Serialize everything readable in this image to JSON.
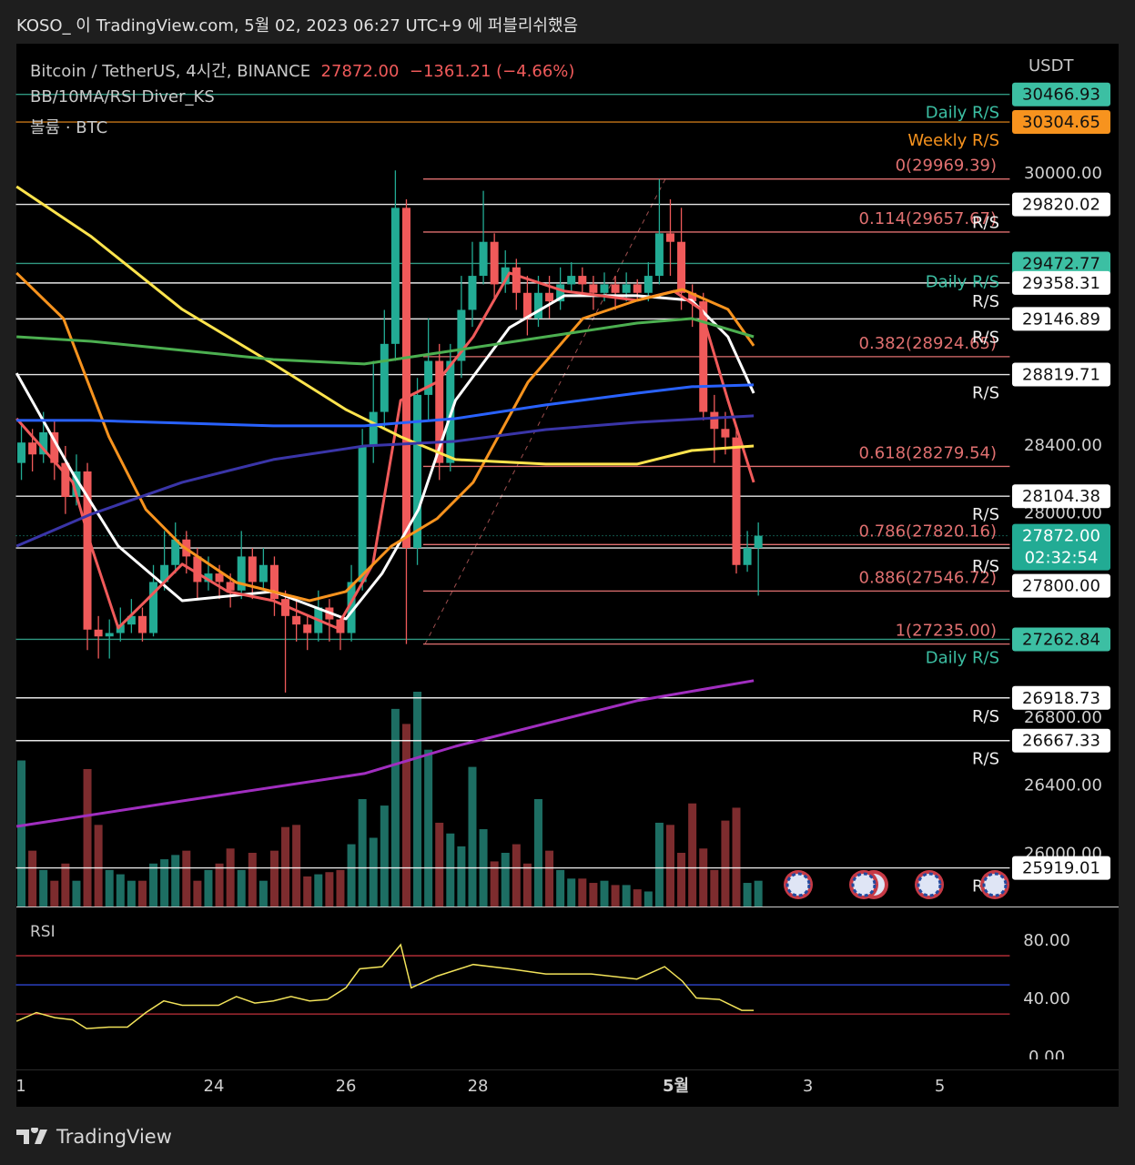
{
  "header": "KOSO_ 이 TradingView.com, 5월 02, 2023 06:27 UTC+9 에 퍼블리쉬했음",
  "brand": "TradingView",
  "chart_data": {
    "type": "candlestick",
    "symbol": "Bitcoin / TetherUS, 4시간, BINANCE",
    "last_price": {
      "value": 27872.0,
      "label": "27872.00"
    },
    "change": "−1361.21 (−4.66%)",
    "indicator": "BB/10MA/RSI Diver_KS",
    "volume_label": "볼륨 · BTC",
    "currency": "USDT",
    "countdown": "02:32:54",
    "up_color": "#22ab94",
    "down_color": "#f05a5a",
    "open": [
      28300,
      28420,
      28350,
      28480,
      28300,
      28100,
      28250,
      27320,
      27280,
      27300,
      27350,
      27400,
      27300,
      27600,
      27700,
      27850,
      27750,
      27600,
      27650,
      27600,
      27550,
      27750,
      27600,
      27700,
      27500,
      27400,
      27350,
      27300,
      27450,
      27380,
      27300,
      27600,
      28400,
      28600,
      29000,
      29800,
      27800,
      28700,
      28900,
      28300,
      28900,
      29200,
      29400,
      29600,
      29350,
      29450,
      29300,
      29150,
      29300,
      29250,
      29350,
      29400,
      29350,
      29300,
      29350,
      29300,
      29350,
      29300,
      29400,
      29650,
      29600,
      29300,
      29250,
      28600,
      28500,
      28450,
      27700,
      27800
    ],
    "high": [
      28520,
      28500,
      28600,
      28550,
      28400,
      28350,
      28300,
      27400,
      27380,
      27450,
      27500,
      27450,
      27700,
      27900,
      27950,
      27900,
      27800,
      27750,
      27700,
      27650,
      27900,
      27800,
      27800,
      27750,
      27550,
      27500,
      27400,
      27550,
      27500,
      27400,
      27700,
      28500,
      28900,
      29200,
      30020,
      29850,
      28800,
      29150,
      29000,
      29000,
      29400,
      29600,
      29900,
      29650,
      29550,
      29500,
      29400,
      29400,
      29400,
      29450,
      29480,
      29450,
      29400,
      29420,
      29400,
      29420,
      29380,
      29480,
      29969,
      29850,
      29800,
      29350,
      29300,
      28700,
      28600,
      28500,
      27900,
      27950
    ],
    "low": [
      28200,
      28250,
      28300,
      28200,
      28000,
      28050,
      27200,
      27150,
      27150,
      27250,
      27300,
      27250,
      27280,
      27550,
      27650,
      27650,
      27500,
      27550,
      27500,
      27450,
      27500,
      27500,
      27550,
      27400,
      26950,
      27250,
      27200,
      27250,
      27250,
      27200,
      27250,
      27550,
      28300,
      28500,
      28900,
      27235,
      27700,
      28550,
      28200,
      28250,
      28800,
      29100,
      29350,
      29250,
      29300,
      29200,
      29050,
      29100,
      29150,
      29200,
      29300,
      29280,
      29200,
      29250,
      29200,
      29250,
      29250,
      29250,
      29350,
      29400,
      29200,
      29100,
      28550,
      28300,
      28350,
      27650,
      27660,
      27520
    ],
    "close": [
      28420,
      28350,
      28480,
      28300,
      28100,
      28250,
      27320,
      27280,
      27300,
      27350,
      27400,
      27300,
      27600,
      27700,
      27850,
      27750,
      27600,
      27650,
      27600,
      27550,
      27750,
      27600,
      27700,
      27500,
      27400,
      27350,
      27300,
      27450,
      27380,
      27300,
      27600,
      28400,
      28600,
      29000,
      29800,
      27800,
      28700,
      28900,
      28300,
      28900,
      29200,
      29400,
      29600,
      29350,
      29450,
      29300,
      29150,
      29300,
      29250,
      29350,
      29400,
      29350,
      29300,
      29350,
      29300,
      29350,
      29300,
      29400,
      29650,
      29600,
      29300,
      29250,
      28600,
      28500,
      28450,
      27700,
      27800,
      27872
    ],
    "volume": [
      68,
      26,
      17,
      12,
      20,
      12,
      64,
      38,
      17,
      15,
      12,
      12,
      20,
      22,
      24,
      26,
      12,
      17,
      20,
      27,
      17,
      25,
      12,
      26,
      37,
      38,
      14,
      15,
      16,
      17,
      29,
      50,
      32,
      47,
      92,
      85,
      100,
      73,
      39,
      34,
      28,
      65,
      36,
      21,
      25,
      29,
      20,
      50,
      26,
      17,
      13,
      13,
      11,
      12,
      10,
      10,
      8,
      7,
      39,
      38,
      25,
      48,
      27,
      17,
      40,
      46,
      11,
      12
    ],
    "lines": [
      {
        "color": "#ffffff",
        "x": [
          0.01,
          0.86,
          1.55,
          2.52,
          3.9,
          5.0,
          5.55,
          6.1,
          6.66,
          7.48,
          8.31,
          9.41,
          10.24,
          10.79,
          11.18
        ],
        "values": [
          28828,
          28240,
          27811,
          27490,
          27544,
          27383,
          27651,
          28026,
          28668,
          29096,
          29283,
          29283,
          29256,
          29042,
          28710
        ]
      },
      {
        "color": "#f05a5a",
        "x": [
          0.01,
          0.86,
          1.14,
          1.55,
          1.97,
          2.52,
          3.21,
          3.9,
          4.86,
          5.41,
          5.83,
          6.38,
          6.93,
          7.48,
          8.31,
          9.41,
          9.97,
          10.38,
          10.79,
          11.18
        ],
        "values": [
          28561,
          28186,
          27811,
          27330,
          27490,
          27705,
          27544,
          27490,
          27330,
          27705,
          28668,
          28775,
          29042,
          29417,
          29310,
          29256,
          29310,
          29203,
          28668,
          28186
        ]
      },
      {
        "color": "#f7931e",
        "x": [
          0.01,
          0.72,
          1.41,
          1.97,
          2.52,
          3.34,
          4.45,
          5.0,
          5.69,
          6.38,
          6.93,
          7.76,
          8.59,
          9.41,
          10.1,
          10.79,
          11.18
        ],
        "values": [
          29417,
          29149,
          28454,
          28026,
          27811,
          27597,
          27490,
          27544,
          27811,
          27972,
          28186,
          28775,
          29149,
          29256,
          29320,
          29203,
          28989
        ]
      },
      {
        "color": "#ffe44d",
        "x": [
          0.01,
          1.14,
          2.52,
          3.9,
          5.0,
          5.83,
          6.66,
          8.03,
          9.41,
          10.24,
          11.18
        ],
        "values": [
          29925,
          29631,
          29203,
          28882,
          28614,
          28454,
          28320,
          28293,
          28293,
          28373,
          28400
        ]
      },
      {
        "color": "#4caf50",
        "x": [
          0.01,
          1.14,
          2.52,
          3.9,
          5.28,
          6.66,
          8.03,
          9.41,
          10.24,
          11.18
        ],
        "values": [
          29042,
          29015,
          28962,
          28908,
          28882,
          28962,
          29042,
          29122,
          29149,
          29042
        ]
      },
      {
        "color": "#2962ff",
        "x": [
          0.01,
          1.14,
          2.52,
          3.9,
          5.28,
          6.66,
          8.03,
          9.41,
          10.24,
          11.18
        ],
        "values": [
          28550,
          28550,
          28534,
          28518,
          28518,
          28561,
          28641,
          28710,
          28748,
          28759
        ]
      },
      {
        "color": "#3a35a8",
        "x": [
          0.01,
          1.14,
          2.52,
          3.9,
          5.28,
          6.66,
          8.03,
          9.41,
          11.18
        ],
        "values": [
          27811,
          27999,
          28186,
          28320,
          28400,
          28427,
          28496,
          28539,
          28577
        ]
      },
      {
        "color": "#a12ec0",
        "x": [
          0.01,
          2.52,
          5.28,
          6.66,
          8.03,
          9.41,
          11.18
        ],
        "values": [
          26163,
          26313,
          26474,
          26634,
          26768,
          26902,
          27020
        ]
      }
    ],
    "levels": [
      {
        "value": 30466.93,
        "label": "30466.93",
        "note": "Daily R/S",
        "color": "#3cbfa3"
      },
      {
        "value": 30304.65,
        "label": "30304.65",
        "note": "Weekly R/S",
        "color": "#f7931e"
      },
      {
        "value": 29820.02,
        "label": "29820.02",
        "note": "R/S",
        "color": "#ffffff"
      },
      {
        "value": 29472.77,
        "label": "29472.77",
        "note": "Daily R/S",
        "color": "#3cbfa3"
      },
      {
        "value": 29358.31,
        "label": "29358.31",
        "note": "R/S",
        "color": "#ffffff"
      },
      {
        "value": 29146.89,
        "label": "29146.89",
        "note": "R/S",
        "color": "#ffffff"
      },
      {
        "value": 28819.71,
        "label": "28819.71",
        "note": "R/S",
        "color": "#ffffff"
      },
      {
        "value": 28104.38,
        "label": "28104.38",
        "note": "R/S",
        "color": "#ffffff"
      },
      {
        "value": 27800.0,
        "label": "27800.00",
        "note": "R/S",
        "color": "#ffffff"
      },
      {
        "value": 27262.84,
        "label": "27262.84",
        "note": "Daily R/S",
        "color": "#3cbfa3"
      },
      {
        "value": 26918.73,
        "label": "26918.73",
        "note": "R/S",
        "color": "#ffffff"
      },
      {
        "value": 26667.33,
        "label": "26667.33",
        "note": "R/S",
        "color": "#ffffff"
      },
      {
        "value": 25919.01,
        "label": "25919.01",
        "note": "R/S",
        "color": "#ffffff"
      }
    ],
    "fib_color": "#e07070",
    "fib": [
      {
        "value": 29969.39,
        "label": "0(29969.39)"
      },
      {
        "value": 29657.67,
        "label": "0.114(29657.67)"
      },
      {
        "value": 28924.65,
        "label": "0.382(28924.65)"
      },
      {
        "value": 28279.54,
        "label": "0.618(28279.54)"
      },
      {
        "value": 27820.16,
        "label": "0.786(27820.16)"
      },
      {
        "value": 27546.72,
        "label": "0.886(27546.72)"
      },
      {
        "value": 27235.0,
        "label": "1(27235.00)"
      }
    ],
    "ylim": [
      25692,
      30765
    ],
    "yticks": [
      {
        "value": 30000,
        "label": "30000.00"
      },
      {
        "value": 28400,
        "label": "28400.00"
      },
      {
        "value": 28000,
        "label": "28000.00"
      },
      {
        "value": 26800,
        "label": "26800.00"
      },
      {
        "value": 26400,
        "label": "26400.00"
      },
      {
        "value": 26000,
        "label": "26000.00"
      }
    ],
    "xlim": [
      0,
      15.06
    ],
    "xticks": [
      {
        "value": 0,
        "label": "1"
      },
      {
        "value": 3,
        "label": "24"
      },
      {
        "value": 5,
        "label": "26"
      },
      {
        "value": 7,
        "label": "28"
      },
      {
        "value": 10,
        "label": "5월"
      },
      {
        "value": 12,
        "label": "3"
      },
      {
        "value": 14,
        "label": "5"
      }
    ],
    "rsi": {
      "title": "RSI",
      "color": "#f2e35a",
      "x": [
        0.01,
        0.31,
        0.59,
        0.86,
        1.07,
        1.41,
        1.69,
        1.97,
        2.24,
        2.52,
        2.79,
        3.07,
        3.34,
        3.62,
        3.9,
        4.17,
        4.45,
        4.72,
        5.0,
        5.21,
        5.55,
        5.83,
        5.99,
        6.38,
        6.93,
        7.48,
        8.03,
        8.72,
        9.41,
        9.83,
        10.1,
        10.31,
        10.66,
        11.0,
        11.18
      ],
      "values": [
        25,
        31,
        27.5,
        26,
        20,
        21,
        21,
        31,
        39,
        36,
        36,
        36,
        42,
        37.5,
        39,
        42,
        39,
        40,
        48,
        61,
        62.5,
        77.5,
        48,
        56,
        64,
        61,
        57.5,
        57.5,
        54,
        62.5,
        52.5,
        41,
        40,
        32.5,
        32.5
      ],
      "ylim": [
        -8,
        95
      ],
      "yticks": [
        {
          "value": 80,
          "label": "80.00"
        },
        {
          "value": 40,
          "label": "40.00"
        },
        {
          "value": 0,
          "label": "0.00"
        }
      ],
      "levels": [
        {
          "value": 70,
          "color": "#c0303a"
        },
        {
          "value": 50,
          "color": "#2f45d0"
        },
        {
          "value": 30,
          "color": "#c0303a"
        }
      ]
    }
  }
}
